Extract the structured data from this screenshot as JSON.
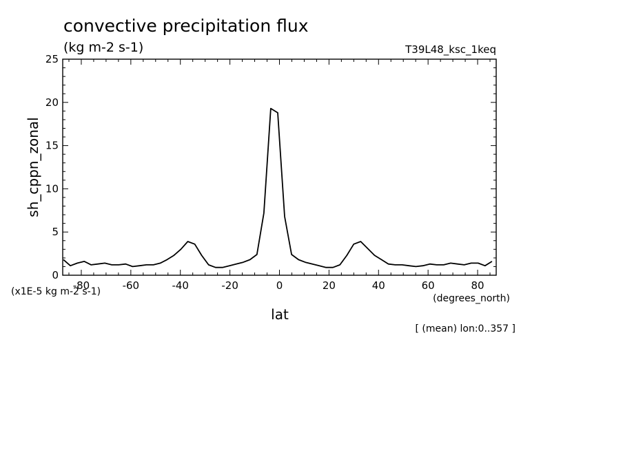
{
  "chart_data": {
    "type": "line",
    "title": "convective precipitation flux",
    "subtitle": "(kg m-2 s-1)",
    "run_label": "T39L48_ksc_1keq",
    "xlabel": "lat",
    "x_units": "(degrees_north)",
    "ylabel": "sh_cppn_zonal",
    "y_scale_note": "(x1E-5 kg m-2 s-1)",
    "footnote": "[ (mean) lon:0..357 ]",
    "xlim": [
      -87.5,
      87.5
    ],
    "ylim": [
      0,
      25
    ],
    "x_ticks": [
      -80,
      -60,
      -40,
      -20,
      0,
      20,
      40,
      60,
      80
    ],
    "x_tick_labels": [
      "-80",
      "-60",
      "-40",
      "-20",
      "0",
      "20",
      "40",
      "60",
      "80"
    ],
    "y_ticks": [
      0,
      5,
      10,
      15,
      20,
      25
    ],
    "y_tick_labels": [
      "0",
      "5",
      "10",
      "15",
      "20",
      "25"
    ],
    "grid": false,
    "line_color": "#000000",
    "series": [
      {
        "x": [
          -87.2,
          -84.4,
          -81.6,
          -78.8,
          -76.0,
          -73.3,
          -70.5,
          -67.7,
          -64.9,
          -62.1,
          -59.3,
          -56.5,
          -53.7,
          -50.9,
          -48.1,
          -45.4,
          -42.6,
          -39.8,
          -37.0,
          -34.2,
          -31.4,
          -28.6,
          -25.8,
          -23.0,
          -20.2,
          -17.5,
          -14.7,
          -11.9,
          -9.1,
          -6.3,
          -3.5,
          -0.7,
          2.1,
          4.9,
          7.7,
          10.5,
          13.3,
          16.1,
          18.8,
          21.6,
          24.4,
          27.2,
          30.0,
          32.8,
          35.6,
          38.4,
          41.2,
          44.0,
          46.7,
          49.5,
          52.3,
          55.1,
          57.9,
          60.7,
          63.5,
          66.3,
          69.1,
          71.9,
          74.6,
          77.4,
          80.2,
          83.0,
          85.8
        ],
        "y": [
          1.8,
          1.1,
          1.4,
          1.6,
          1.2,
          1.3,
          1.4,
          1.2,
          1.2,
          1.3,
          1.0,
          1.1,
          1.2,
          1.2,
          1.4,
          1.8,
          2.3,
          3.0,
          3.9,
          3.6,
          2.3,
          1.2,
          0.9,
          0.9,
          1.1,
          1.3,
          1.5,
          1.8,
          2.4,
          7.2,
          19.3,
          18.8,
          6.8,
          2.4,
          1.8,
          1.5,
          1.3,
          1.1,
          0.9,
          0.9,
          1.2,
          2.3,
          3.6,
          3.9,
          3.1,
          2.3,
          1.8,
          1.3,
          1.2,
          1.2,
          1.1,
          1.0,
          1.1,
          1.3,
          1.2,
          1.2,
          1.4,
          1.3,
          1.2,
          1.4,
          1.4,
          1.1,
          1.6
        ]
      }
    ]
  }
}
